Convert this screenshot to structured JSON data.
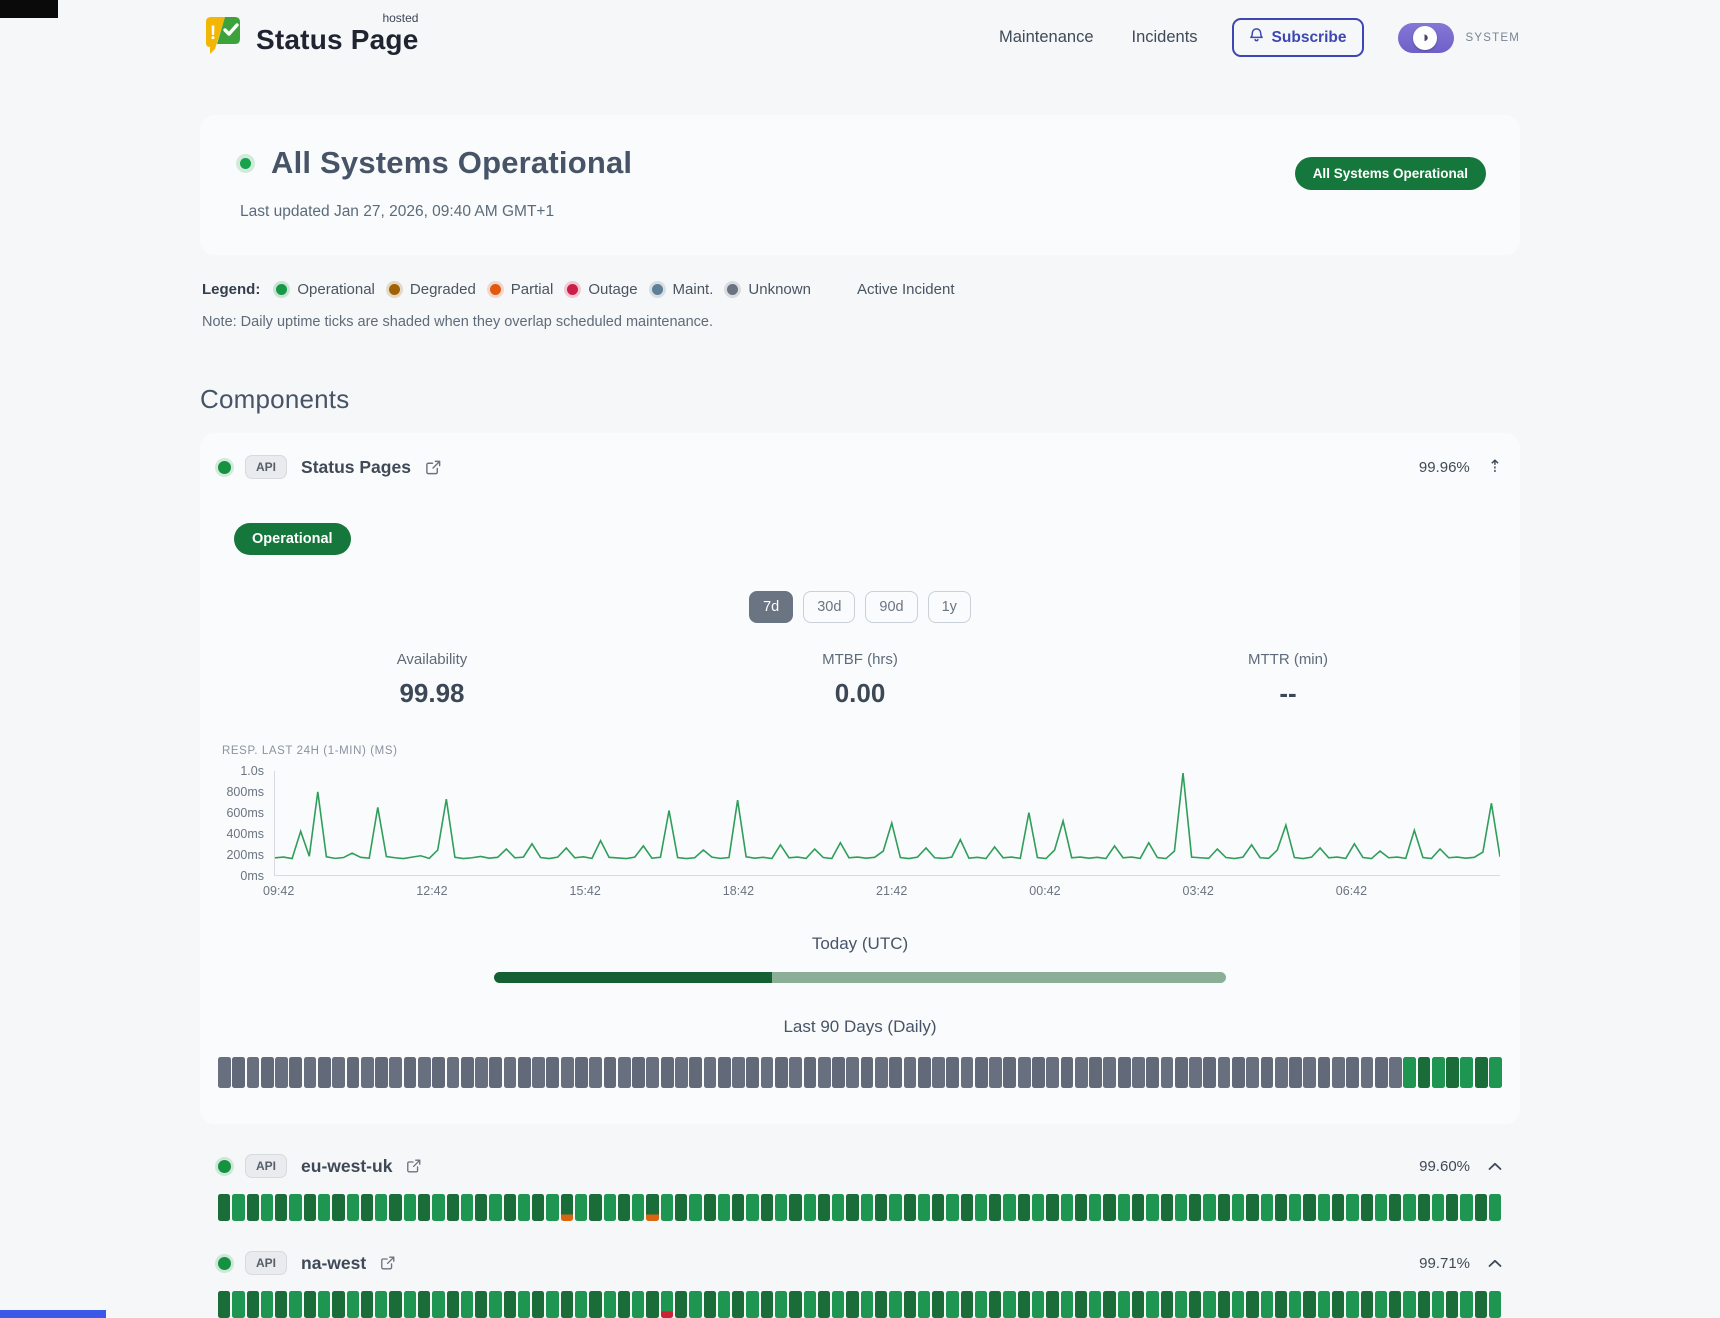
{
  "header": {
    "brand": {
      "name": "Status Page",
      "superscript": "hosted"
    },
    "nav": [
      {
        "label": "Maintenance"
      },
      {
        "label": "Incidents"
      }
    ],
    "subscribe_label": "Subscribe",
    "theme_toggle_label": "SYSTEM"
  },
  "hero": {
    "title": "All Systems Operational",
    "last_updated": "Last updated Jan 27, 2026, 09:40 AM GMT+1",
    "badge": "All Systems Operational"
  },
  "legend": {
    "label": "Legend:",
    "items": [
      {
        "label": "Operational",
        "color": "#159947"
      },
      {
        "label": "Degraded",
        "color": "#a16207"
      },
      {
        "label": "Partial",
        "color": "#e2590d"
      },
      {
        "label": "Outage",
        "color": "#cc1f45"
      },
      {
        "label": "Maint.",
        "color": "#5e7f96"
      },
      {
        "label": "Unknown",
        "color": "#6b7280"
      }
    ],
    "active_incident_label": "Active Incident",
    "note": "Note: Daily uptime ticks are shaded when they overlap scheduled maintenance."
  },
  "components": {
    "heading": "Components",
    "expanded": {
      "badge": "API",
      "name": "Status Pages",
      "uptime": "99.96%",
      "collapse_icon": "⇡",
      "status_label": "Operational",
      "ranges": [
        "7d",
        "30d",
        "90d",
        "1y"
      ],
      "active_range": "7d",
      "stats": [
        {
          "label": "Availability",
          "value": "99.98"
        },
        {
          "label": "MTBF (hrs)",
          "value": "0.00"
        },
        {
          "label": "MTTR (min)",
          "value": "--"
        }
      ],
      "today_label": "Today (UTC)",
      "today_progress_pct": 38,
      "daily_label": "Last 90 Days (Daily)",
      "daily_ticks": {
        "count": 90,
        "default": "unknown",
        "overrides": {
          "83": "operational",
          "84": "operational",
          "85": "operational",
          "86": "operational",
          "87": "operational",
          "88": "operational",
          "89": "operational"
        }
      }
    },
    "rows": [
      {
        "badge": "API",
        "name": "eu-west-uk",
        "uptime": "99.60%",
        "daily_ticks": {
          "count": 90,
          "default": "operational",
          "overrides": {
            "24": "partial-tip",
            "30": "partial-tip"
          }
        }
      },
      {
        "badge": "API",
        "name": "na-west",
        "uptime": "99.71%",
        "daily_ticks": {
          "count": 90,
          "default": "operational",
          "overrides": {
            "31": "outage-tip"
          }
        }
      }
    ]
  },
  "chart_data": {
    "type": "line",
    "title": "RESP. LAST 24H (1-MIN) (MS)",
    "line_color": "#2f9e5a",
    "ylim": [
      0,
      1000
    ],
    "unit": "ms",
    "grid": false,
    "y_ticks": [
      "1.0s",
      "800ms",
      "600ms",
      "400ms",
      "200ms",
      "0ms"
    ],
    "x_ticks": [
      "09:42",
      "12:42",
      "15:42",
      "18:42",
      "21:42",
      "00:42",
      "03:42",
      "06:42"
    ],
    "values": [
      165,
      172,
      158,
      420,
      180,
      800,
      175,
      160,
      168,
      210,
      170,
      162,
      650,
      178,
      166,
      158,
      172,
      185,
      160,
      240,
      730,
      170,
      158,
      166,
      178,
      162,
      170,
      250,
      165,
      172,
      300,
      168,
      158,
      172,
      260,
      166,
      175,
      160,
      330,
      170,
      164,
      158,
      172,
      280,
      162,
      170,
      620,
      168,
      158,
      166,
      240,
      172,
      160,
      168,
      720,
      175,
      162,
      170,
      158,
      290,
      166,
      172,
      160,
      250,
      168,
      158,
      310,
      166,
      172,
      162,
      170,
      230,
      500,
      168,
      158,
      172,
      260,
      166,
      160,
      172,
      340,
      162,
      170,
      158,
      270,
      166,
      172,
      160,
      600,
      168,
      158,
      240,
      520,
      166,
      172,
      162,
      170,
      158,
      280,
      166,
      172,
      160,
      310,
      168,
      158,
      230,
      980,
      172,
      166,
      160,
      250,
      168,
      158,
      172,
      290,
      166,
      160,
      240,
      480,
      168,
      158,
      172,
      260,
      166,
      172,
      160,
      300,
      168,
      158,
      230,
      166,
      172,
      160,
      430,
      168,
      158,
      250,
      166,
      172,
      162,
      170,
      220,
      690,
      175
    ]
  }
}
